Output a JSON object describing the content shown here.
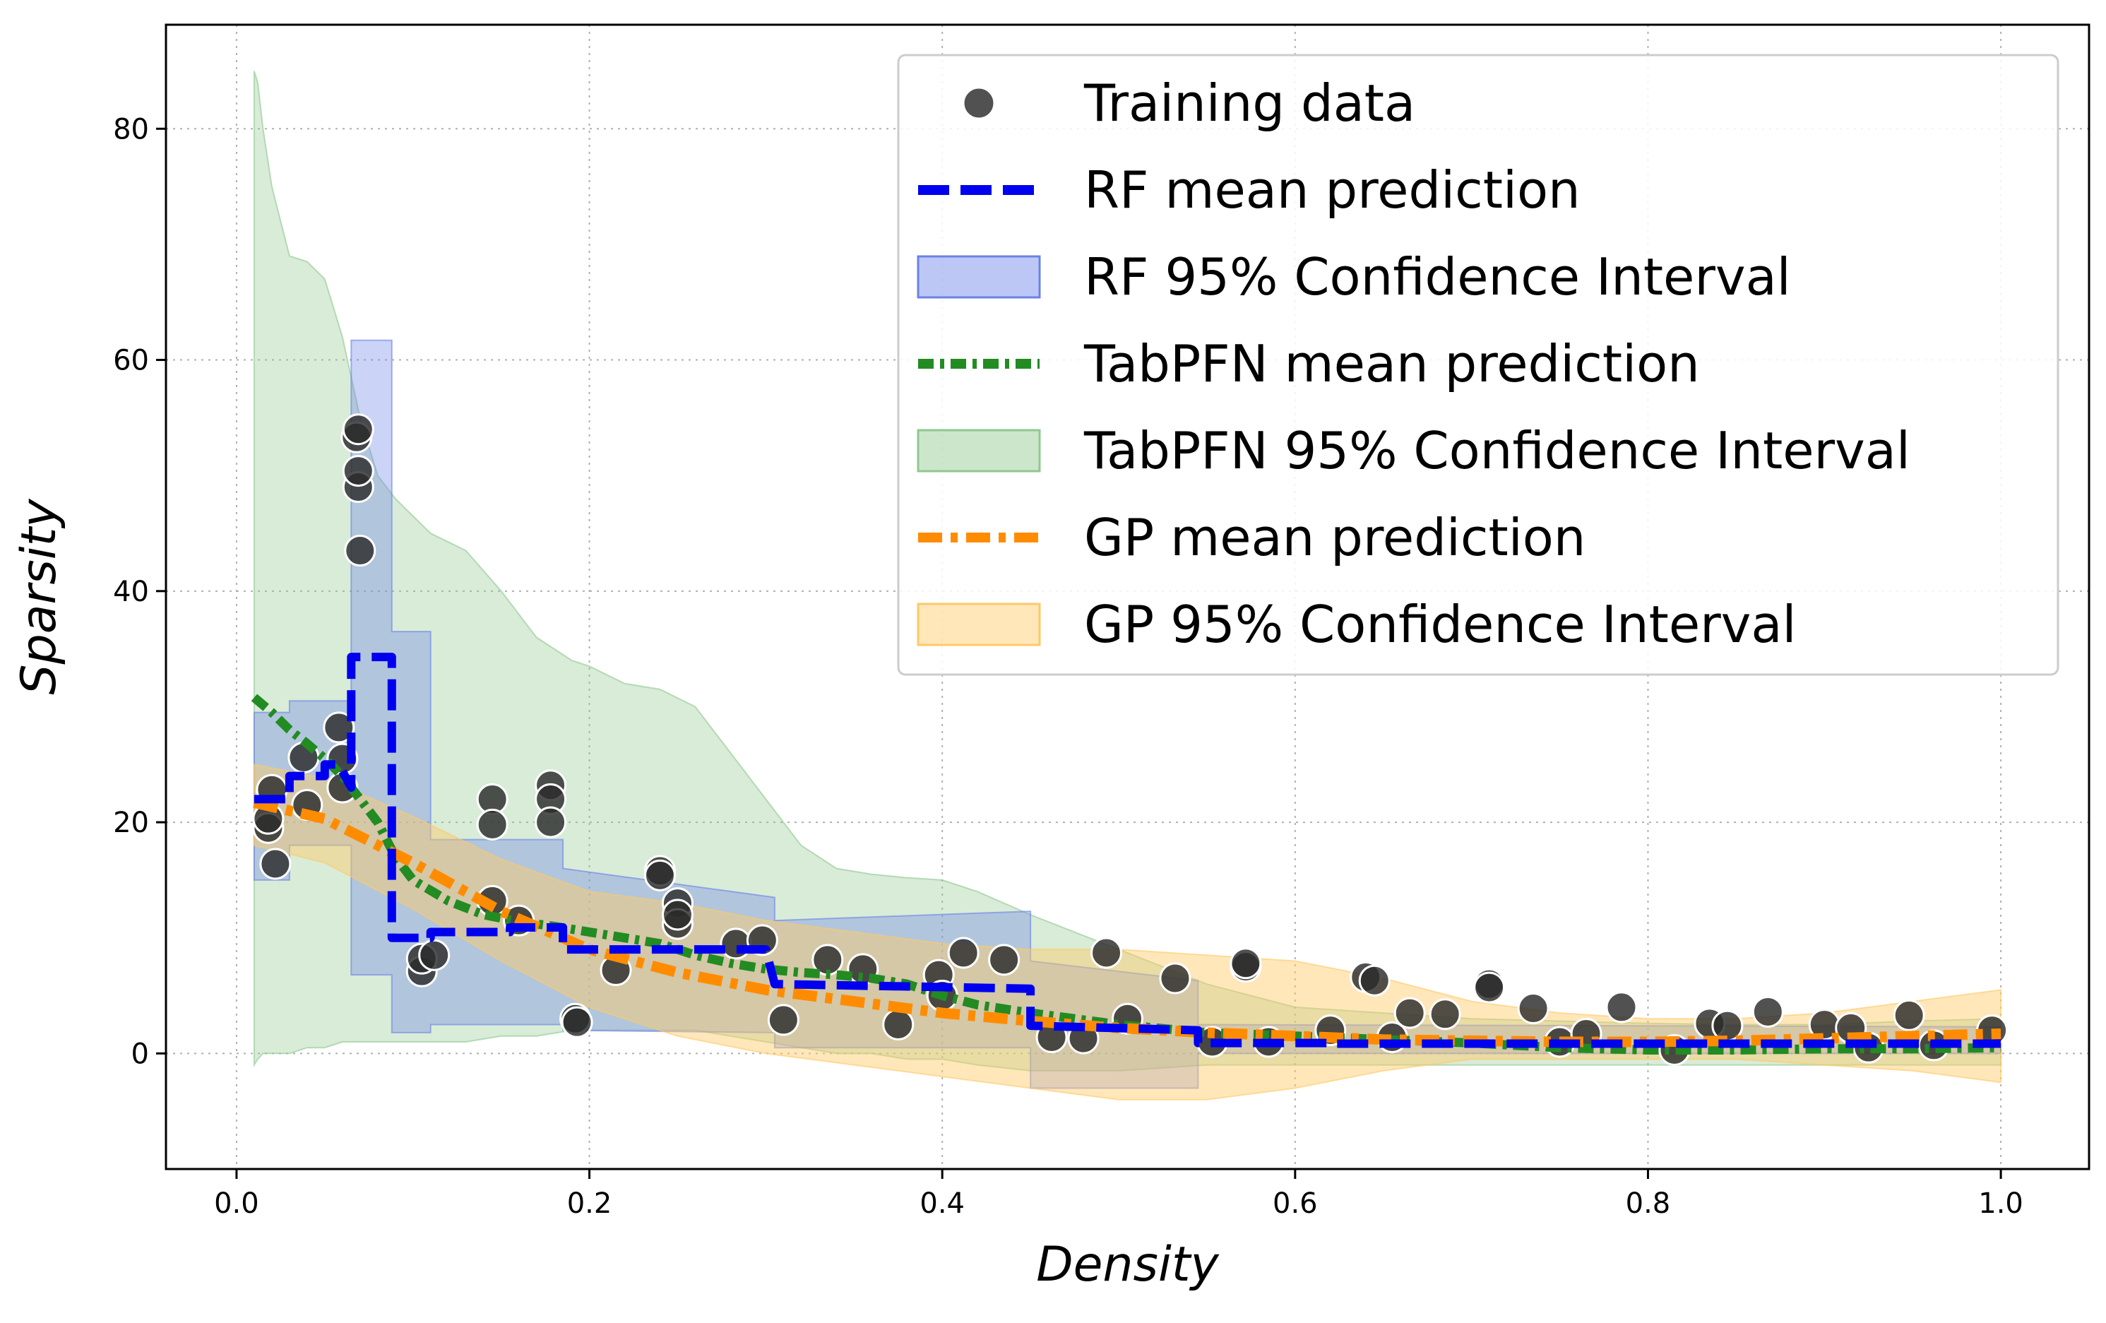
{
  "chart_data": {
    "type": "line",
    "xlabel": "Density",
    "ylabel": "Sparsity",
    "xlim": [
      -0.04,
      1.05
    ],
    "ylim": [
      -10,
      89
    ],
    "xticks": [
      0.0,
      0.2,
      0.4,
      0.6,
      0.8,
      1.0
    ],
    "xtick_labels": [
      "0.0",
      "0.2",
      "0.4",
      "0.6",
      "0.8",
      "1.0"
    ],
    "yticks": [
      0,
      20,
      40,
      60,
      80
    ],
    "ytick_labels": [
      "0",
      "20",
      "40",
      "60",
      "80"
    ],
    "grid": true,
    "legend_position": "top-right",
    "colors": {
      "training": "#2b2b2b",
      "rf": "#0000ee",
      "rf_band": "#6a82e8",
      "tabpfn": "#228b22",
      "tabpfn_band": "#8fc88f",
      "gp": "#ff8c00",
      "gp_band": "#ffc966"
    },
    "legend": [
      {
        "key": "training",
        "label": "Training data"
      },
      {
        "key": "rf",
        "label": "RF mean prediction"
      },
      {
        "key": "rf_band",
        "label": "RF 95% Confidence Interval"
      },
      {
        "key": "tabpfn",
        "label": "TabPFN mean prediction"
      },
      {
        "key": "tabpfn_band",
        "label": "TabPFN 95% Confidence Interval"
      },
      {
        "key": "gp",
        "label": "GP mean prediction"
      },
      {
        "key": "gp_band",
        "label": "GP 95% Confidence Interval"
      }
    ],
    "training_data": [
      [
        0.018,
        19.5
      ],
      [
        0.018,
        20.3
      ],
      [
        0.02,
        22.8
      ],
      [
        0.022,
        16.4
      ],
      [
        0.038,
        25.6
      ],
      [
        0.04,
        21.5
      ],
      [
        0.058,
        28.2
      ],
      [
        0.06,
        23.0
      ],
      [
        0.06,
        25.5
      ],
      [
        0.068,
        53.3
      ],
      [
        0.069,
        54.0
      ],
      [
        0.069,
        49.0
      ],
      [
        0.069,
        50.4
      ],
      [
        0.07,
        43.5
      ],
      [
        0.105,
        7.1
      ],
      [
        0.105,
        8.2
      ],
      [
        0.112,
        8.5
      ],
      [
        0.145,
        22.0
      ],
      [
        0.145,
        19.8
      ],
      [
        0.145,
        13.2
      ],
      [
        0.16,
        11.5
      ],
      [
        0.178,
        23.2
      ],
      [
        0.178,
        22.0
      ],
      [
        0.178,
        20.0
      ],
      [
        0.192,
        3.0
      ],
      [
        0.193,
        2.7
      ],
      [
        0.215,
        7.2
      ],
      [
        0.24,
        15.8
      ],
      [
        0.24,
        15.4
      ],
      [
        0.25,
        13.0
      ],
      [
        0.25,
        11.2
      ],
      [
        0.25,
        12.0
      ],
      [
        0.283,
        9.5
      ],
      [
        0.298,
        9.8
      ],
      [
        0.31,
        2.9
      ],
      [
        0.335,
        8.1
      ],
      [
        0.355,
        7.3
      ],
      [
        0.375,
        2.5
      ],
      [
        0.398,
        6.8
      ],
      [
        0.4,
        5.0
      ],
      [
        0.412,
        8.7
      ],
      [
        0.435,
        8.1
      ],
      [
        0.462,
        1.4
      ],
      [
        0.48,
        1.3
      ],
      [
        0.493,
        8.7
      ],
      [
        0.505,
        3.0
      ],
      [
        0.532,
        6.5
      ],
      [
        0.553,
        1.0
      ],
      [
        0.572,
        7.5
      ],
      [
        0.572,
        7.8
      ],
      [
        0.585,
        1.0
      ],
      [
        0.62,
        2.0
      ],
      [
        0.64,
        6.6
      ],
      [
        0.645,
        6.3
      ],
      [
        0.655,
        1.4
      ],
      [
        0.665,
        3.5
      ],
      [
        0.685,
        3.4
      ],
      [
        0.71,
        6.0
      ],
      [
        0.71,
        5.7
      ],
      [
        0.735,
        3.9
      ],
      [
        0.75,
        1.0
      ],
      [
        0.765,
        1.7
      ],
      [
        0.785,
        4.0
      ],
      [
        0.815,
        0.3
      ],
      [
        0.835,
        2.6
      ],
      [
        0.845,
        2.4
      ],
      [
        0.868,
        3.6
      ],
      [
        0.9,
        2.5
      ],
      [
        0.915,
        2.2
      ],
      [
        0.925,
        0.5
      ],
      [
        0.948,
        3.3
      ],
      [
        0.962,
        0.7
      ],
      [
        0.995,
        2.0
      ]
    ],
    "rf_mean": [
      [
        0.01,
        22.0
      ],
      [
        0.03,
        22.0
      ],
      [
        0.03,
        24.0
      ],
      [
        0.05,
        24.0
      ],
      [
        0.05,
        25.0
      ],
      [
        0.058,
        25.0
      ],
      [
        0.065,
        23.0
      ],
      [
        0.065,
        34.3
      ],
      [
        0.088,
        34.3
      ],
      [
        0.088,
        10.0
      ],
      [
        0.11,
        10.0
      ],
      [
        0.11,
        10.5
      ],
      [
        0.155,
        10.5
      ],
      [
        0.155,
        10.9
      ],
      [
        0.185,
        10.9
      ],
      [
        0.185,
        9.0
      ],
      [
        0.3,
        9.0
      ],
      [
        0.305,
        6.0
      ],
      [
        0.45,
        5.6
      ],
      [
        0.45,
        2.4
      ],
      [
        0.545,
        2.0
      ],
      [
        0.545,
        0.9
      ],
      [
        0.62,
        0.9
      ],
      [
        0.62,
        0.85
      ],
      [
        1.0,
        0.85
      ]
    ],
    "rf_band": [
      [
        0.01,
        15.0,
        29.5
      ],
      [
        0.03,
        15.0,
        29.5
      ],
      [
        0.03,
        18.0,
        30.5
      ],
      [
        0.065,
        18.0,
        30.5
      ],
      [
        0.065,
        6.8,
        61.7
      ],
      [
        0.088,
        6.8,
        61.7
      ],
      [
        0.088,
        1.8,
        36.5
      ],
      [
        0.11,
        1.8,
        36.5
      ],
      [
        0.11,
        2.5,
        18.5
      ],
      [
        0.185,
        2.5,
        18.5
      ],
      [
        0.185,
        2.0,
        16.0
      ],
      [
        0.305,
        1.8,
        13.5
      ],
      [
        0.305,
        0.5,
        11.5
      ],
      [
        0.45,
        0.5,
        12.3
      ],
      [
        0.45,
        -3.0,
        8.0
      ],
      [
        0.545,
        -3.0,
        6.3
      ],
      [
        0.545,
        0.0,
        2.5
      ],
      [
        1.0,
        0.0,
        2.3
      ]
    ],
    "tabpfn_mean": [
      [
        0.01,
        30.8
      ],
      [
        0.02,
        29.5
      ],
      [
        0.03,
        28.0
      ],
      [
        0.04,
        26.8
      ],
      [
        0.05,
        25.5
      ],
      [
        0.06,
        24.0
      ],
      [
        0.07,
        22.0
      ],
      [
        0.08,
        20.0
      ],
      [
        0.09,
        17.0
      ],
      [
        0.1,
        15.0
      ],
      [
        0.12,
        13.2
      ],
      [
        0.14,
        12.0
      ],
      [
        0.16,
        11.4
      ],
      [
        0.18,
        11.0
      ],
      [
        0.2,
        10.5
      ],
      [
        0.22,
        10.0
      ],
      [
        0.24,
        9.5
      ],
      [
        0.26,
        8.5
      ],
      [
        0.28,
        7.8
      ],
      [
        0.3,
        7.3
      ],
      [
        0.32,
        7.0
      ],
      [
        0.34,
        6.8
      ],
      [
        0.36,
        6.5
      ],
      [
        0.38,
        6.0
      ],
      [
        0.4,
        5.0
      ],
      [
        0.42,
        4.2
      ],
      [
        0.45,
        3.5
      ],
      [
        0.5,
        2.5
      ],
      [
        0.55,
        1.8
      ],
      [
        0.6,
        1.5
      ],
      [
        0.65,
        1.2
      ],
      [
        0.7,
        0.9
      ],
      [
        0.75,
        0.5
      ],
      [
        0.8,
        0.3
      ],
      [
        0.85,
        0.3
      ],
      [
        0.9,
        0.4
      ],
      [
        0.95,
        0.4
      ],
      [
        1.0,
        0.5
      ]
    ],
    "tabpfn_band": [
      [
        0.01,
        -1.0,
        85.0
      ],
      [
        0.012,
        -0.5,
        84.0
      ],
      [
        0.015,
        0.0,
        80.0
      ],
      [
        0.02,
        0.0,
        75.0
      ],
      [
        0.025,
        0.0,
        72.0
      ],
      [
        0.03,
        0.0,
        69.0
      ],
      [
        0.04,
        0.5,
        68.5
      ],
      [
        0.05,
        0.5,
        67.0
      ],
      [
        0.06,
        1.0,
        62.0
      ],
      [
        0.07,
        1.0,
        55.0
      ],
      [
        0.08,
        1.0,
        50.0
      ],
      [
        0.09,
        1.0,
        48.0
      ],
      [
        0.1,
        1.0,
        46.5
      ],
      [
        0.11,
        1.0,
        45.0
      ],
      [
        0.13,
        1.0,
        43.5
      ],
      [
        0.15,
        1.5,
        40.0
      ],
      [
        0.17,
        1.5,
        36.0
      ],
      [
        0.19,
        2.0,
        34.0
      ],
      [
        0.2,
        2.0,
        33.5
      ],
      [
        0.22,
        2.0,
        32.0
      ],
      [
        0.24,
        2.0,
        31.5
      ],
      [
        0.26,
        2.0,
        30.0
      ],
      [
        0.28,
        1.5,
        26.0
      ],
      [
        0.3,
        1.0,
        22.0
      ],
      [
        0.32,
        0.5,
        18.0
      ],
      [
        0.34,
        0.0,
        16.0
      ],
      [
        0.36,
        0.0,
        15.5
      ],
      [
        0.38,
        -0.5,
        15.2
      ],
      [
        0.4,
        -0.5,
        15.0
      ],
      [
        0.42,
        -1.0,
        14.0
      ],
      [
        0.45,
        -1.5,
        12.0
      ],
      [
        0.5,
        -1.5,
        9.0
      ],
      [
        0.55,
        -1.0,
        6.0
      ],
      [
        0.6,
        -1.0,
        4.0
      ],
      [
        0.65,
        -1.0,
        3.5
      ],
      [
        0.7,
        -1.0,
        3.0
      ],
      [
        0.75,
        -1.0,
        2.8
      ],
      [
        0.8,
        -1.0,
        2.6
      ],
      [
        0.85,
        -1.0,
        2.5
      ],
      [
        0.9,
        -1.0,
        2.5
      ],
      [
        0.95,
        -1.0,
        2.8
      ],
      [
        1.0,
        -1.0,
        3.0
      ]
    ],
    "gp_mean": [
      [
        0.01,
        21.7
      ],
      [
        0.05,
        20.3
      ],
      [
        0.1,
        16.5
      ],
      [
        0.15,
        12.3
      ],
      [
        0.2,
        9.0
      ],
      [
        0.25,
        7.0
      ],
      [
        0.3,
        5.5
      ],
      [
        0.35,
        4.5
      ],
      [
        0.4,
        3.5
      ],
      [
        0.45,
        2.8
      ],
      [
        0.5,
        2.2
      ],
      [
        0.55,
        1.8
      ],
      [
        0.6,
        1.5
      ],
      [
        0.65,
        1.2
      ],
      [
        0.7,
        1.1
      ],
      [
        0.75,
        1.0
      ],
      [
        0.8,
        1.0
      ],
      [
        0.85,
        1.1
      ],
      [
        0.9,
        1.3
      ],
      [
        0.95,
        1.5
      ],
      [
        1.0,
        1.7
      ]
    ],
    "gp_band": [
      [
        0.01,
        18.0,
        25.0
      ],
      [
        0.05,
        16.5,
        23.8
      ],
      [
        0.1,
        12.5,
        20.5
      ],
      [
        0.15,
        8.0,
        16.8
      ],
      [
        0.2,
        4.0,
        14.0
      ],
      [
        0.25,
        1.5,
        13.0
      ],
      [
        0.3,
        0.0,
        11.5
      ],
      [
        0.35,
        -1.0,
        10.5
      ],
      [
        0.4,
        -2.0,
        9.5
      ],
      [
        0.45,
        -3.0,
        9.0
      ],
      [
        0.5,
        -4.0,
        9.0
      ],
      [
        0.55,
        -4.0,
        8.5
      ],
      [
        0.6,
        -3.0,
        8.0
      ],
      [
        0.65,
        -1.5,
        6.5
      ],
      [
        0.7,
        -0.5,
        4.5
      ],
      [
        0.75,
        -0.5,
        3.5
      ],
      [
        0.8,
        -0.5,
        3.0
      ],
      [
        0.85,
        -0.5,
        3.0
      ],
      [
        0.9,
        -1.0,
        3.5
      ],
      [
        0.95,
        -1.5,
        4.5
      ],
      [
        1.0,
        -2.5,
        5.5
      ]
    ]
  }
}
